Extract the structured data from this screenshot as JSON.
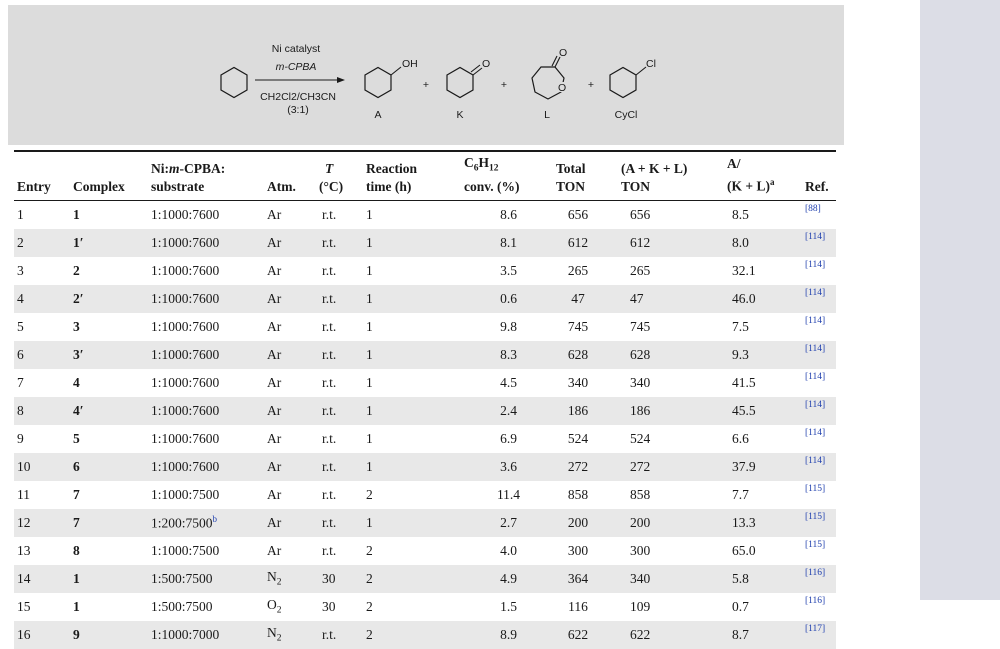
{
  "scheme": {
    "reagent_top_1": "Ni catalyst",
    "reagent_top_2": "m-CPBA",
    "solvent": "CH2Cl2/CH3CN",
    "ratio": "(3:1)",
    "oh_label": "OH",
    "o_label_k": "O",
    "o_label_l1": "O",
    "o_label_l2": "O",
    "cl_label": "Cl",
    "plus": "+",
    "labels": [
      "A",
      "K",
      "L",
      "CyCl"
    ]
  },
  "table": {
    "headers": {
      "entry": "Entry",
      "complex": "Complex",
      "ratio_1": "Ni:",
      "ratio_m": "m",
      "ratio_2": "-CPBA:",
      "ratio_3": "substrate",
      "atm": "Atm.",
      "t_1": "T",
      "t_2": "(°C)",
      "time_1": "Reaction",
      "time_2": "time (h)",
      "conv_1a": "C",
      "conv_1b": "6",
      "conv_1c": "H",
      "conv_1d": "12",
      "conv_2": "conv. (%)",
      "ton_1": "Total",
      "ton_2": "TON",
      "akl_1": "(A + K + L)",
      "akl_2": "TON",
      "ratio_akl_1": "A/",
      "ratio_akl_2": "(K + L)",
      "ratio_akl_sup": "a",
      "ref": "Ref."
    },
    "rows": [
      {
        "entry": "1",
        "complex": "1",
        "ratio": "1:1000:7600",
        "ratio_sup": "",
        "atm": "Ar",
        "atm_sub": "",
        "t": "r.t.",
        "time": "1",
        "conv": "8.6",
        "ton": "656",
        "akl": "656",
        "ak": "8.5",
        "ref": "[88]"
      },
      {
        "entry": "2",
        "complex": "1′",
        "ratio": "1:1000:7600",
        "ratio_sup": "",
        "atm": "Ar",
        "atm_sub": "",
        "t": "r.t.",
        "time": "1",
        "conv": "8.1",
        "ton": "612",
        "akl": "612",
        "ak": "8.0",
        "ref": "[114]"
      },
      {
        "entry": "3",
        "complex": "2",
        "ratio": "1:1000:7600",
        "ratio_sup": "",
        "atm": "Ar",
        "atm_sub": "",
        "t": "r.t.",
        "time": "1",
        "conv": "3.5",
        "ton": "265",
        "akl": "265",
        "ak": "32.1",
        "ref": "[114]"
      },
      {
        "entry": "4",
        "complex": "2′",
        "ratio": "1:1000:7600",
        "ratio_sup": "",
        "atm": "Ar",
        "atm_sub": "",
        "t": "r.t.",
        "time": "1",
        "conv": "0.6",
        "ton": "47",
        "akl": "47",
        "ak": "46.0",
        "ref": "[114]"
      },
      {
        "entry": "5",
        "complex": "3",
        "ratio": "1:1000:7600",
        "ratio_sup": "",
        "atm": "Ar",
        "atm_sub": "",
        "t": "r.t.",
        "time": "1",
        "conv": "9.8",
        "ton": "745",
        "akl": "745",
        "ak": "7.5",
        "ref": "[114]"
      },
      {
        "entry": "6",
        "complex": "3′",
        "ratio": "1:1000:7600",
        "ratio_sup": "",
        "atm": "Ar",
        "atm_sub": "",
        "t": "r.t.",
        "time": "1",
        "conv": "8.3",
        "ton": "628",
        "akl": "628",
        "ak": "9.3",
        "ref": "[114]"
      },
      {
        "entry": "7",
        "complex": "4",
        "ratio": "1:1000:7600",
        "ratio_sup": "",
        "atm": "Ar",
        "atm_sub": "",
        "t": "r.t.",
        "time": "1",
        "conv": "4.5",
        "ton": "340",
        "akl": "340",
        "ak": "41.5",
        "ref": "[114]"
      },
      {
        "entry": "8",
        "complex": "4′",
        "ratio": "1:1000:7600",
        "ratio_sup": "",
        "atm": "Ar",
        "atm_sub": "",
        "t": "r.t.",
        "time": "1",
        "conv": "2.4",
        "ton": "186",
        "akl": "186",
        "ak": "45.5",
        "ref": "[114]"
      },
      {
        "entry": "9",
        "complex": "5",
        "ratio": "1:1000:7600",
        "ratio_sup": "",
        "atm": "Ar",
        "atm_sub": "",
        "t": "r.t.",
        "time": "1",
        "conv": "6.9",
        "ton": "524",
        "akl": "524",
        "ak": "6.6",
        "ref": "[114]"
      },
      {
        "entry": "10",
        "complex": "6",
        "ratio": "1:1000:7600",
        "ratio_sup": "",
        "atm": "Ar",
        "atm_sub": "",
        "t": "r.t.",
        "time": "1",
        "conv": "3.6",
        "ton": "272",
        "akl": "272",
        "ak": "37.9",
        "ref": "[114]"
      },
      {
        "entry": "11",
        "complex": "7",
        "ratio": "1:1000:7500",
        "ratio_sup": "",
        "atm": "Ar",
        "atm_sub": "",
        "t": "r.t.",
        "time": "2",
        "conv": "11.4",
        "ton": "858",
        "akl": "858",
        "ak": "7.7",
        "ref": "[115]"
      },
      {
        "entry": "12",
        "complex": "7",
        "ratio": "1:200:7500",
        "ratio_sup": "b",
        "atm": "Ar",
        "atm_sub": "",
        "t": "r.t.",
        "time": "1",
        "conv": "2.7",
        "ton": "200",
        "akl": "200",
        "ak": "13.3",
        "ref": "[115]"
      },
      {
        "entry": "13",
        "complex": "8",
        "ratio": "1:1000:7500",
        "ratio_sup": "",
        "atm": "Ar",
        "atm_sub": "",
        "t": "r.t.",
        "time": "2",
        "conv": "4.0",
        "ton": "300",
        "akl": "300",
        "ak": "65.0",
        "ref": "[115]"
      },
      {
        "entry": "14",
        "complex": "1",
        "ratio": "1:500:7500",
        "ratio_sup": "",
        "atm": "N",
        "atm_sub": "2",
        "t": "30",
        "time": "2",
        "conv": "4.9",
        "ton": "364",
        "akl": "340",
        "ak": "5.8",
        "ref": "[116]"
      },
      {
        "entry": "15",
        "complex": "1",
        "ratio": "1:500:7500",
        "ratio_sup": "",
        "atm": "O",
        "atm_sub": "2",
        "t": "30",
        "time": "2",
        "conv": "1.5",
        "ton": "116",
        "akl": "109",
        "ak": "0.7",
        "ref": "[116]"
      },
      {
        "entry": "16",
        "complex": "9",
        "ratio": "1:1000:7000",
        "ratio_sup": "",
        "atm": "N",
        "atm_sub": "2",
        "t": "r.t.",
        "time": "2",
        "conv": "8.9",
        "ton": "622",
        "akl": "622",
        "ak": "8.7",
        "ref": "[117]"
      }
    ]
  }
}
